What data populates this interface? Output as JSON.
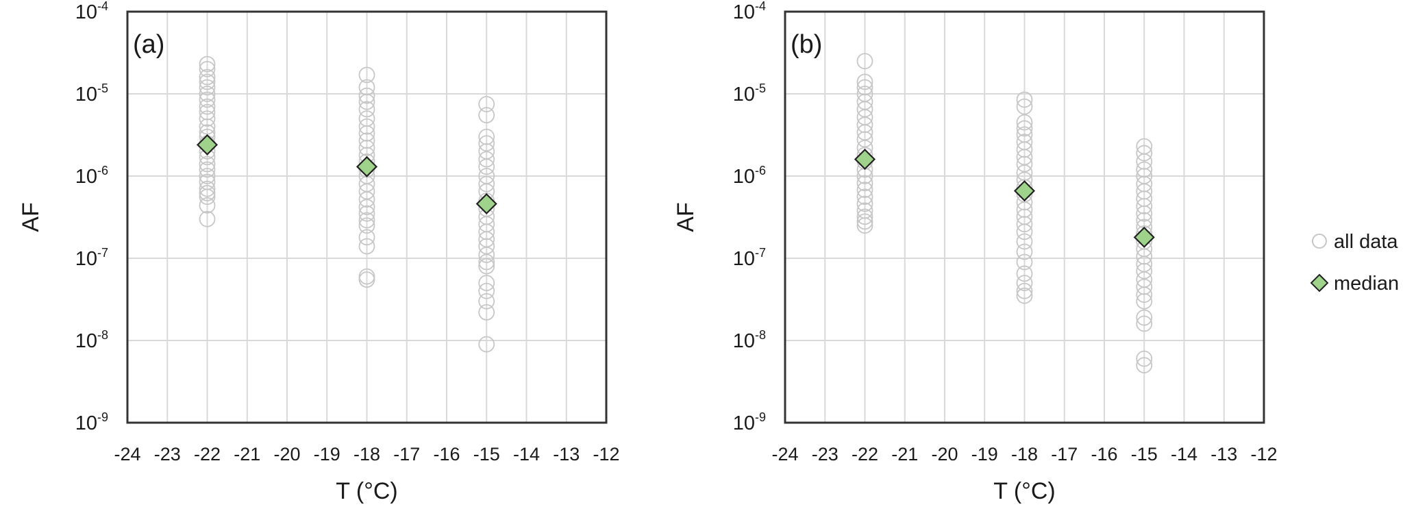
{
  "chart_data": [
    {
      "type": "scatter",
      "panel_label": "(a)",
      "xlabel": "T (°C)",
      "ylabel": "AF",
      "xlim": [
        -24,
        -12
      ],
      "ylim": [
        1e-09,
        0.0001
      ],
      "yscale": "log",
      "grid": true,
      "x_ticks": [
        "-24",
        "-23",
        "-22",
        "-21",
        "-20",
        "-19",
        "-18",
        "-17",
        "-16",
        "-15",
        "-14",
        "-13",
        "-12"
      ],
      "y_ticks": [
        {
          "base": "10",
          "exp": "-4"
        },
        {
          "base": "10",
          "exp": "-5"
        },
        {
          "base": "10",
          "exp": "-6"
        },
        {
          "base": "10",
          "exp": "-7"
        },
        {
          "base": "10",
          "exp": "-8"
        },
        {
          "base": "10",
          "exp": "-9"
        }
      ],
      "series": [
        {
          "name": "all data",
          "points": [
            {
              "x": -22,
              "y": [
                2.3e-05,
                2e-05,
                1.6e-05,
                1.4e-05,
                1.2e-05,
                1e-05,
                8.5e-06,
                7e-06,
                6e-06,
                5e-06,
                4e-06,
                3.4e-06,
                3e-06,
                2.5e-06,
                2e-06,
                1.7e-06,
                1.4e-06,
                1.2e-06,
                1e-06,
                8.5e-07,
                7e-07,
                6.2e-07,
                5.6e-07,
                4.4e-07,
                3e-07
              ]
            },
            {
              "x": -18,
              "y": [
                1.7e-05,
                1.2e-05,
                9.5e-06,
                8e-06,
                6.5e-06,
                5e-06,
                4e-06,
                3.3e-06,
                2.7e-06,
                2.2e-06,
                1.8e-06,
                1.5e-06,
                1.2e-06,
                1e-06,
                8e-07,
                6.5e-07,
                5.2e-07,
                4.2e-07,
                3.5e-07,
                2.9e-07,
                2.5e-07,
                1.8e-07,
                1.4e-07,
                6e-08,
                5.5e-08
              ]
            },
            {
              "x": -15,
              "y": [
                7.5e-06,
                5.5e-06,
                3e-06,
                2.5e-06,
                2e-06,
                1.6e-06,
                1.3e-06,
                1e-06,
                8e-07,
                6.5e-07,
                5e-07,
                4e-07,
                3.2e-07,
                2.6e-07,
                2.1e-07,
                1.7e-07,
                1.4e-07,
                1.1e-07,
                9e-08,
                8e-08,
                5e-08,
                4e-08,
                3e-08,
                2.2e-08,
                9e-09
              ]
            }
          ]
        },
        {
          "name": "median",
          "points": [
            {
              "x": -22,
              "y": 2.4e-06
            },
            {
              "x": -18,
              "y": 1.3e-06
            },
            {
              "x": -15,
              "y": 4.6e-07
            }
          ]
        }
      ]
    },
    {
      "type": "scatter",
      "panel_label": "(b)",
      "xlabel": "T (°C)",
      "ylabel": "AF",
      "xlim": [
        -24,
        -12
      ],
      "ylim": [
        1e-09,
        0.0001
      ],
      "yscale": "log",
      "grid": true,
      "x_ticks": [
        "-24",
        "-23",
        "-22",
        "-21",
        "-20",
        "-19",
        "-18",
        "-17",
        "-16",
        "-15",
        "-14",
        "-13",
        "-12"
      ],
      "y_ticks": [
        {
          "base": "10",
          "exp": "-4"
        },
        {
          "base": "10",
          "exp": "-5"
        },
        {
          "base": "10",
          "exp": "-6"
        },
        {
          "base": "10",
          "exp": "-7"
        },
        {
          "base": "10",
          "exp": "-8"
        },
        {
          "base": "10",
          "exp": "-9"
        }
      ],
      "series": [
        {
          "name": "all data",
          "points": [
            {
              "x": -22,
              "y": [
                2.5e-05,
                1.4e-05,
                1.2e-05,
                1e-05,
                8e-06,
                6.5e-06,
                5.2e-06,
                4.2e-06,
                3.4e-06,
                2.8e-06,
                2.2e-06,
                1.8e-06,
                1.5e-06,
                1.2e-06,
                1e-06,
                8.2e-07,
                6.8e-07,
                5.6e-07,
                4.6e-07,
                3.8e-07,
                3.2e-07,
                2.8e-07,
                2.5e-07
              ]
            },
            {
              "x": -18,
              "y": [
                8.5e-06,
                7e-06,
                4.5e-06,
                3.8e-06,
                3.2e-06,
                2.6e-06,
                2.1e-06,
                1.7e-06,
                1.4e-06,
                1.1e-06,
                9e-07,
                7.3e-07,
                6e-07,
                4.8e-07,
                3.9e-07,
                3.2e-07,
                2.6e-07,
                2.1e-07,
                1.6e-07,
                1.2e-07,
                9e-08,
                6.5e-08,
                5e-08,
                4e-08,
                3.5e-08
              ]
            },
            {
              "x": -15,
              "y": [
                2.3e-06,
                1.9e-06,
                1.5e-06,
                1.2e-06,
                1e-06,
                8e-07,
                6.5e-07,
                5.3e-07,
                4.3e-07,
                3.5e-07,
                2.9e-07,
                2.4e-07,
                2e-07,
                1.6e-07,
                1.3e-07,
                1.05e-07,
                8.5e-08,
                7e-08,
                5.5e-08,
                4.5e-08,
                3.6e-08,
                3e-08,
                1.9e-08,
                1.6e-08,
                6e-09,
                5e-09
              ]
            }
          ]
        },
        {
          "name": "median",
          "points": [
            {
              "x": -22,
              "y": 1.6e-06
            },
            {
              "x": -18,
              "y": 6.6e-07
            },
            {
              "x": -15,
              "y": 1.8e-07
            }
          ]
        }
      ]
    }
  ],
  "legend": {
    "placement": "right",
    "items": [
      {
        "label": "all data",
        "marker": "open-circle"
      },
      {
        "label": "median",
        "marker": "diamond"
      }
    ]
  },
  "colors": {
    "all_data_stroke": "#c6c6c6",
    "median_fill": "#9fd38c",
    "median_stroke": "#222222",
    "grid": "#d9d9d9",
    "frame": "#333333"
  }
}
